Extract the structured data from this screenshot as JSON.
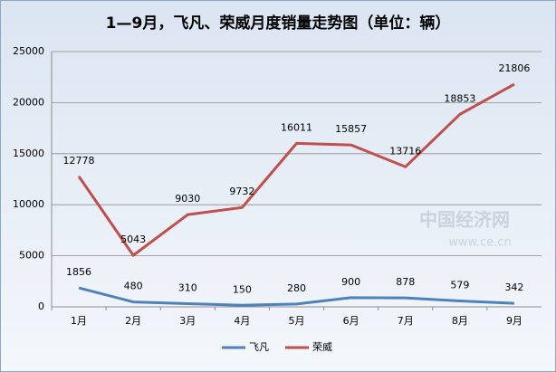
{
  "chart_data": {
    "type": "line",
    "title": "1—9月，飞凡、荣威月度销量走势图（单位：辆）",
    "categories": [
      "1月",
      "2月",
      "3月",
      "4月",
      "5月",
      "6月",
      "7月",
      "8月",
      "9月"
    ],
    "series": [
      {
        "name": "飞凡",
        "color": "#4f81bd",
        "values": [
          1856,
          480,
          310,
          150,
          280,
          900,
          878,
          579,
          342
        ]
      },
      {
        "name": "荣威",
        "color": "#c0504d",
        "values": [
          12778,
          5043,
          9030,
          9732,
          16011,
          15857,
          13716,
          18853,
          21806
        ]
      }
    ],
    "ylim": [
      0,
      25000
    ],
    "yticks": [
      0,
      5000,
      10000,
      15000,
      20000,
      25000
    ],
    "grid": true,
    "legend": "bottom",
    "watermark": [
      "中国经济网",
      "www.ce.cn"
    ]
  }
}
